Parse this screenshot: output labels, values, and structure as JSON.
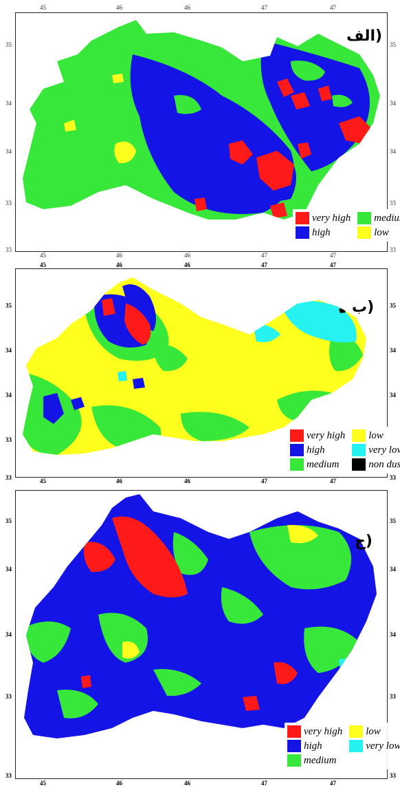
{
  "colors": {
    "very_high": "#ff1a1a",
    "high": "#1414e6",
    "medium": "#37e83a",
    "low": "#ffff1e",
    "very_low": "#26f2f2",
    "non_dust": "#000000"
  },
  "panels": [
    {
      "label": "الف)",
      "top_ticks": [
        "45",
        "46",
        "46",
        "47",
        "47"
      ],
      "bottom_ticks": [
        "45",
        "46",
        "46",
        "47",
        "47"
      ],
      "left_ticks": [
        "35",
        "34",
        "34",
        "33",
        "33"
      ],
      "right_ticks": [
        "35",
        "34",
        "34",
        "33",
        "33"
      ],
      "legend": [
        {
          "label": "very high",
          "color": "very_high"
        },
        {
          "label": "medium",
          "color": "medium"
        },
        {
          "label": "high",
          "color": "high"
        },
        {
          "label": "low",
          "color": "low"
        }
      ]
    },
    {
      "label": "ب)",
      "top_ticks": [
        "45",
        "46",
        "46",
        "47",
        "47"
      ],
      "bottom_ticks": [
        "45",
        "46",
        "46",
        "47",
        "47"
      ],
      "left_ticks": [
        "35",
        "34",
        "34",
        "33",
        "33"
      ],
      "right_ticks": [
        "35",
        "34",
        "34",
        "33",
        "33"
      ],
      "legend": [
        {
          "label": "very high",
          "color": "very_high"
        },
        {
          "label": "low",
          "color": "low"
        },
        {
          "label": "high",
          "color": "high"
        },
        {
          "label": "very low",
          "color": "very_low"
        },
        {
          "label": "medium",
          "color": "medium"
        },
        {
          "label": "non dust",
          "color": "non_dust"
        }
      ]
    },
    {
      "label": "ج)",
      "top_ticks": [
        "45",
        "46",
        "46",
        "47",
        "47"
      ],
      "bottom_ticks": [
        "45",
        "46",
        "46",
        "47",
        "47"
      ],
      "left_ticks": [
        "35",
        "34",
        "34",
        "33",
        "33"
      ],
      "right_ticks": [
        "35",
        "34",
        "34",
        "33",
        "33"
      ],
      "legend": [
        {
          "label": "very high",
          "color": "very_high"
        },
        {
          "label": "low",
          "color": "low"
        },
        {
          "label": "high",
          "color": "high"
        },
        {
          "label": "very low",
          "color": "very_low"
        },
        {
          "label": "medium",
          "color": "medium"
        }
      ]
    }
  ]
}
